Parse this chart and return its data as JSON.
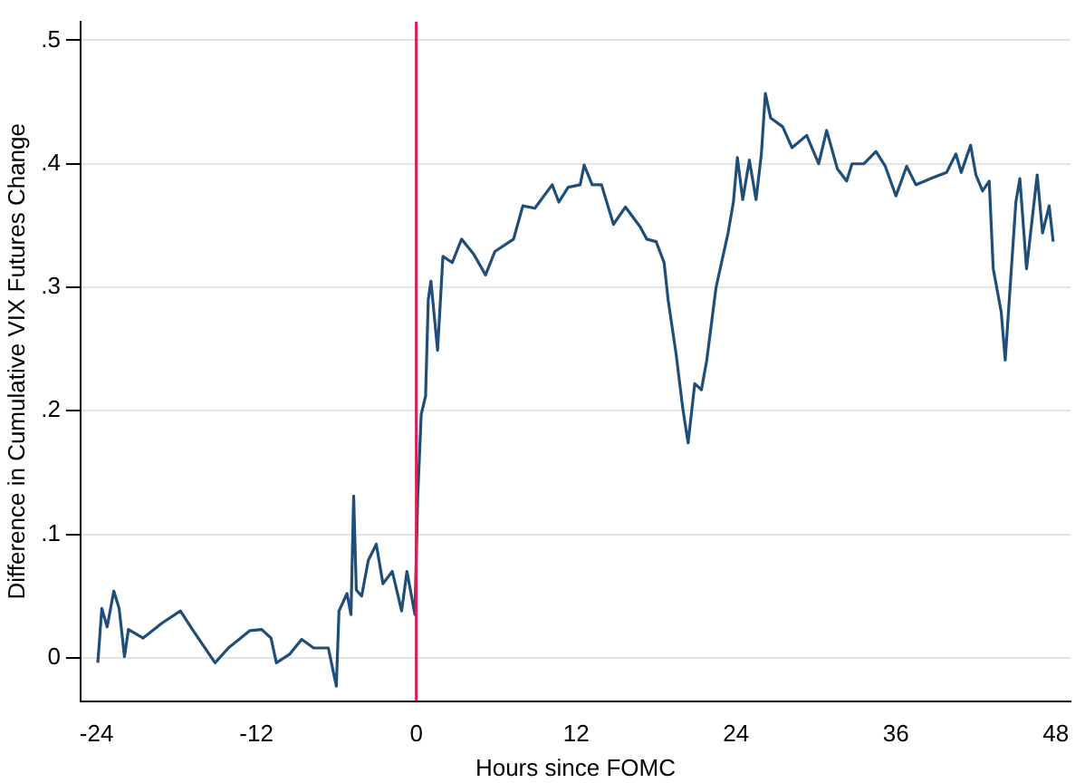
{
  "chart_data": {
    "type": "line",
    "xlabel": "Hours since FOMC",
    "ylabel": "Difference in Cumulative VIX Futures Change",
    "xlim": [
      -25.2,
      49.1
    ],
    "xticks": [
      -24,
      -12,
      0,
      12,
      24,
      36,
      48
    ],
    "ylim": [
      -0.035,
      0.515
    ],
    "yticks": [
      {
        "value": 0,
        "label": "0"
      },
      {
        "value": 0.1,
        "label": ".1"
      },
      {
        "value": 0.2,
        "label": ".2"
      },
      {
        "value": 0.3,
        "label": ".3"
      },
      {
        "value": 0.4,
        "label": ".4"
      },
      {
        "value": 0.5,
        "label": ".5"
      }
    ],
    "grid": "y",
    "legend": false,
    "marker": "none",
    "line_style": "solid",
    "ref_lines": [
      {
        "axis": "x",
        "value": 0,
        "color": "#d6204f"
      }
    ],
    "series": [
      {
        "color": "#1f4e79",
        "x": [
          -23.9,
          -23.6,
          -23.2,
          -22.7,
          -22.3,
          -21.9,
          -21.6,
          -20.5,
          -19.1,
          -17.7,
          -16.8,
          -15.1,
          -14.1,
          -12.5,
          -11.6,
          -10.9,
          -10.5,
          -9.5,
          -8.6,
          -7.7,
          -6.6,
          -6.0,
          -5.8,
          -5.2,
          -4.9,
          -4.7,
          -4.5,
          -4.1,
          -3.6,
          -3.0,
          -2.5,
          -1.8,
          -1.1,
          -0.7,
          -0.1,
          0.1,
          0.37,
          0.7,
          0.9,
          1.1,
          1.6,
          2.0,
          2.7,
          3.4,
          4.3,
          5.2,
          5.9,
          7.3,
          8.0,
          8.9,
          10.2,
          10.7,
          11.4,
          12.3,
          12.6,
          13.2,
          13.9,
          14.8,
          15.7,
          16.8,
          17.3,
          18.0,
          18.6,
          18.9,
          19.5,
          20.0,
          20.4,
          20.9,
          21.4,
          21.8,
          22.5,
          23.4,
          23.8,
          24.1,
          24.5,
          25.0,
          25.5,
          25.9,
          26.2,
          26.6,
          27.5,
          28.2,
          29.3,
          30.2,
          30.8,
          31.6,
          32.3,
          32.7,
          33.6,
          34.5,
          35.2,
          36.0,
          36.8,
          37.5,
          38.6,
          39.8,
          40.5,
          40.9,
          41.6,
          42.0,
          42.5,
          43.0,
          43.3,
          43.9,
          44.2,
          44.6,
          45.0,
          45.3,
          45.8,
          46.6,
          47.0,
          47.5,
          47.8
        ],
        "values": [
          -0.004,
          0.04,
          0.025,
          0.054,
          0.04,
          0.001,
          0.023,
          0.016,
          0.028,
          0.038,
          0.023,
          -0.004,
          0.008,
          0.022,
          0.023,
          0.016,
          -0.004,
          0.003,
          0.015,
          0.008,
          0.008,
          -0.023,
          0.038,
          0.052,
          0.035,
          0.131,
          0.055,
          0.05,
          0.079,
          0.092,
          0.06,
          0.07,
          0.038,
          0.07,
          0.035,
          0.128,
          0.197,
          0.212,
          0.29,
          0.305,
          0.249,
          0.325,
          0.32,
          0.339,
          0.327,
          0.31,
          0.329,
          0.339,
          0.366,
          0.364,
          0.383,
          0.369,
          0.381,
          0.383,
          0.399,
          0.383,
          0.383,
          0.351,
          0.365,
          0.349,
          0.339,
          0.337,
          0.32,
          0.29,
          0.246,
          0.202,
          0.174,
          0.222,
          0.217,
          0.241,
          0.3,
          0.344,
          0.369,
          0.405,
          0.371,
          0.403,
          0.371,
          0.408,
          0.457,
          0.437,
          0.43,
          0.413,
          0.423,
          0.4,
          0.427,
          0.396,
          0.386,
          0.4,
          0.4,
          0.41,
          0.398,
          0.374,
          0.398,
          0.383,
          0.388,
          0.393,
          0.408,
          0.393,
          0.415,
          0.391,
          0.378,
          0.386,
          0.315,
          0.28,
          0.241,
          0.305,
          0.369,
          0.388,
          0.315,
          0.391,
          0.344,
          0.366,
          0.337
        ]
      }
    ]
  }
}
